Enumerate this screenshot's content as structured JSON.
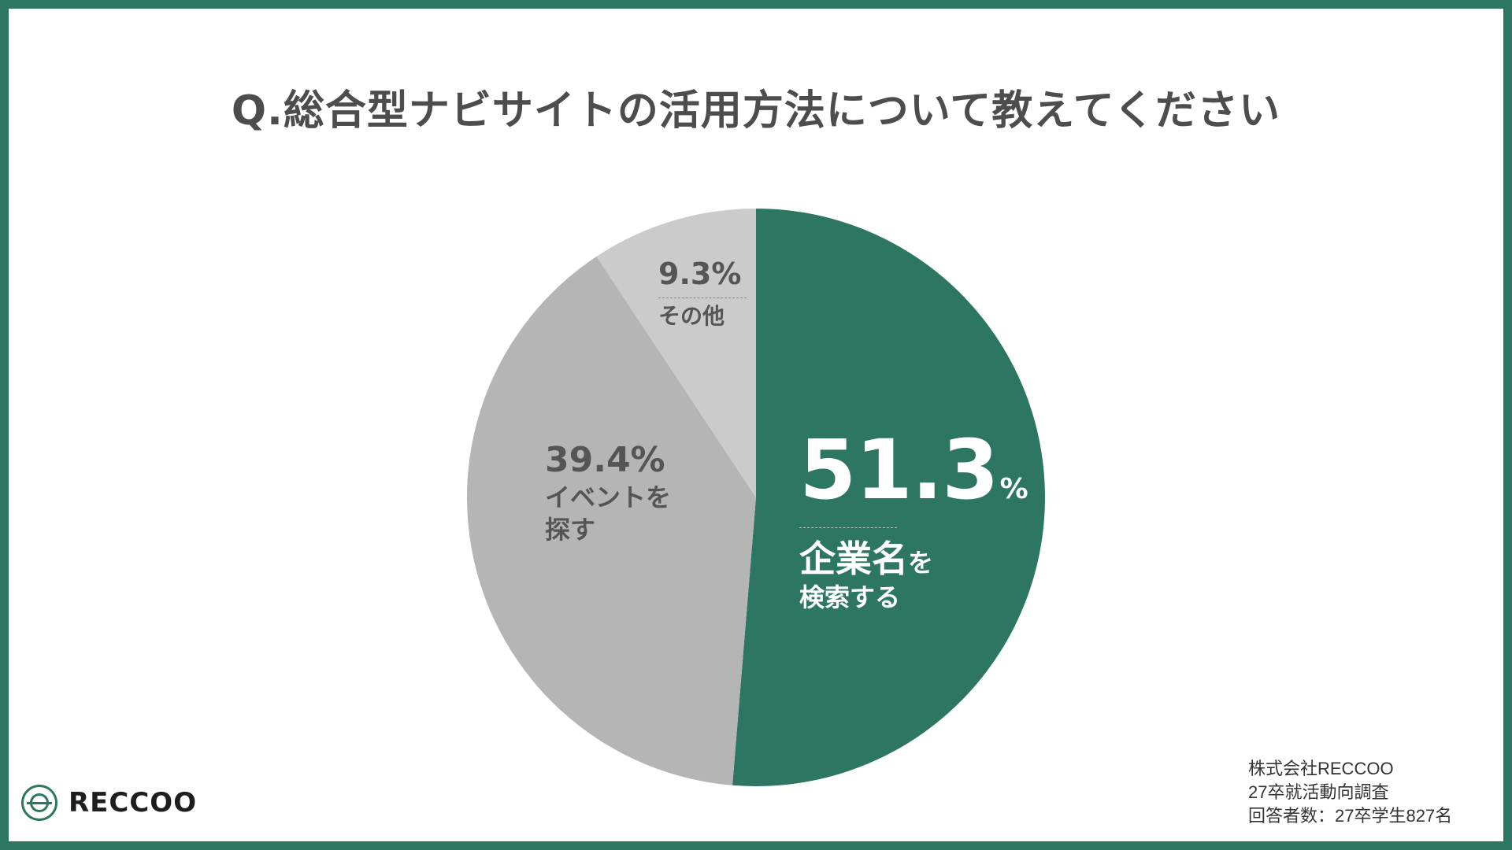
{
  "title": "Q.総合型ナビサイトの活用方法について教えてください",
  "chart_data": {
    "type": "pie",
    "title": "Q.総合型ナビサイトの活用方法について教えてください",
    "slices": [
      {
        "label": "企業名を検索する",
        "value": 51.3,
        "color": "#2d7762"
      },
      {
        "label": "イベントを探す",
        "value": 39.4,
        "color": "#b5b5b5"
      },
      {
        "label": "その他",
        "value": 9.3,
        "color": "#cbcbcb"
      }
    ]
  },
  "labels": {
    "s1_value": "51.3",
    "s1_unit": "%",
    "s1_line1": "企業名",
    "s1_line1_small": "を",
    "s1_line2": "検索する",
    "s2_value": "39.4%",
    "s2_line1": "イベントを",
    "s2_line2": "探す",
    "s3_value": "9.3%",
    "s3_line1": "その他"
  },
  "source": {
    "line1": "株式会社RECCOO",
    "line2": "27卒就活動向調査",
    "line3": "回答者数：27卒学生827名"
  },
  "logo": {
    "text": "RECCOO"
  }
}
